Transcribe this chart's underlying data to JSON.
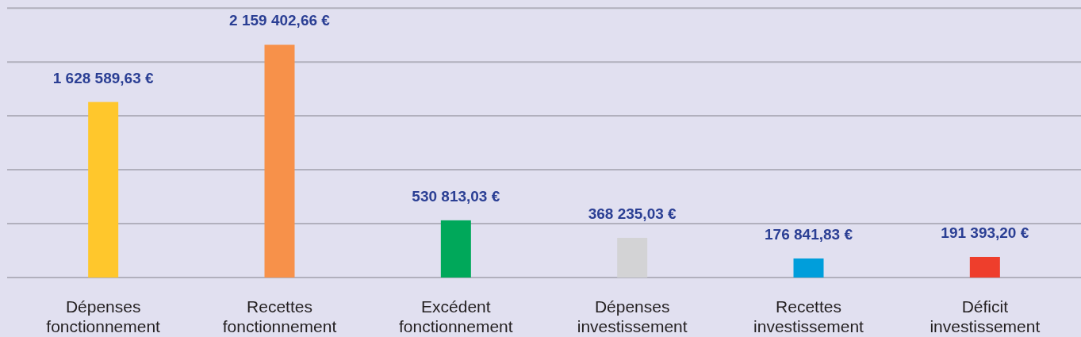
{
  "chart_data": {
    "type": "bar",
    "categories": [
      "Dépenses fonctionnement",
      "Recettes fonctionnement",
      "Excédent fonctionnement",
      "Dépenses investissement",
      "Recettes investissement",
      "Déficit investissement"
    ],
    "values": [
      1628589.63,
      2159402.66,
      530813.03,
      368235.03,
      176841.83,
      191393.2
    ],
    "colors": [
      "#ffc72c",
      "#f7914a",
      "#00a85a",
      "#d3d3d5",
      "#009edb",
      "#ee3e2c"
    ],
    "value_labels": [
      "1 628 589,63 €",
      "2 159 402,66 €",
      "530 813,03 €",
      "368 235,03 €",
      "176 841,83 €",
      "191 393,20 €"
    ],
    "ylim": [
      0,
      2575000
    ],
    "yticks": [
      {
        "value": 0,
        "label": null
      },
      {
        "value": 500000,
        "label": null
      },
      {
        "value": 1000000,
        "label": null
      },
      {
        "value": 1500000,
        "label": null
      },
      {
        "value": 2000000,
        "label": null
      },
      {
        "value": 2500000,
        "label": null
      }
    ],
    "grid": "y",
    "tick_labels": "x"
  }
}
